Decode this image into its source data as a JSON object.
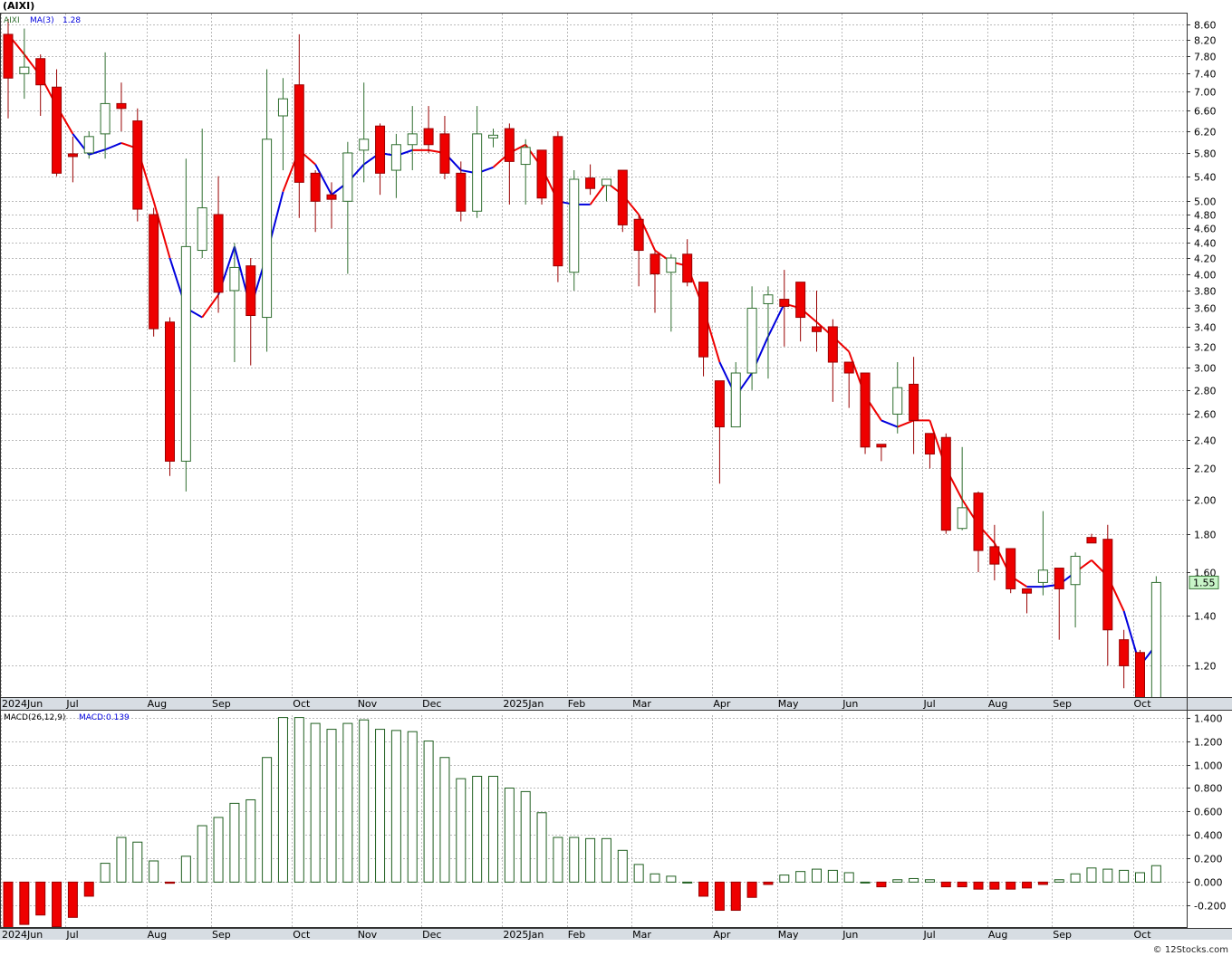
{
  "header": {
    "ticker_label": "(AIXI)",
    "watermark": "© 12Stocks.com"
  },
  "colors": {
    "up_body": "#ffffff",
    "up_border": "#2f6e2f",
    "down_body": "#ee0000",
    "down_border": "#990000",
    "ma_red": "#ee0000",
    "ma_blue": "#0000dd",
    "grid": "#bbbbbb",
    "axis_band": "#d7dde3",
    "last_price_bg": "#c8f5c8"
  },
  "chart_data": [
    {
      "type": "candlestick",
      "scale": "log",
      "legend": {
        "symbol": "AIXI",
        "ma_label": "MA(3)",
        "ma_value": "1.28",
        "placement": "top-left"
      },
      "last_price_label": "1.55",
      "ylim": [
        1.09,
        8.9
      ],
      "y_ticks": [
        "1.20",
        "1.40",
        "1.60",
        "1.80",
        "2.00",
        "2.20",
        "2.40",
        "2.60",
        "2.80",
        "3.00",
        "3.20",
        "3.40",
        "3.60",
        "3.80",
        "4.00",
        "4.20",
        "4.40",
        "4.60",
        "4.80",
        "5.00",
        "5.40",
        "5.80",
        "6.20",
        "6.60",
        "7.00",
        "7.40",
        "7.80",
        "8.20",
        "8.60"
      ],
      "x_ticks": [
        {
          "label": "2024Jun",
          "week": 0
        },
        {
          "label": "Jul",
          "week": 4
        },
        {
          "label": "Aug",
          "week": 9
        },
        {
          "label": "Sep",
          "week": 13
        },
        {
          "label": "Oct",
          "week": 18
        },
        {
          "label": "Nov",
          "week": 22
        },
        {
          "label": "Dec",
          "week": 26
        },
        {
          "label": "2025Jan",
          "week": 31
        },
        {
          "label": "Feb",
          "week": 35
        },
        {
          "label": "Mar",
          "week": 39
        },
        {
          "label": "Apr",
          "week": 44
        },
        {
          "label": "May",
          "week": 48
        },
        {
          "label": "Jun",
          "week": 52
        },
        {
          "label": "Jul",
          "week": 57
        },
        {
          "label": "Aug",
          "week": 61
        },
        {
          "label": "Sep",
          "week": 65
        },
        {
          "label": "Oct",
          "week": 70
        }
      ],
      "grid": true,
      "weeks": 72,
      "candles": [
        [
          8.35,
          8.75,
          6.45,
          7.3
        ],
        [
          7.4,
          8.5,
          6.85,
          7.55
        ],
        [
          7.75,
          7.85,
          6.5,
          7.15
        ],
        [
          7.1,
          7.5,
          5.4,
          5.45
        ],
        [
          5.77,
          6.1,
          5.3,
          5.75
        ],
        [
          5.8,
          6.2,
          5.7,
          6.1
        ],
        [
          6.15,
          7.9,
          5.7,
          6.75
        ],
        [
          6.75,
          7.2,
          6.2,
          6.65
        ],
        [
          6.4,
          6.65,
          4.7,
          4.88
        ],
        [
          4.8,
          4.9,
          3.3,
          3.38
        ],
        [
          3.45,
          3.5,
          2.15,
          2.25
        ],
        [
          2.25,
          5.7,
          2.05,
          4.35
        ],
        [
          4.3,
          6.25,
          4.2,
          4.9
        ],
        [
          4.8,
          5.4,
          3.55,
          3.78
        ],
        [
          3.8,
          4.4,
          3.05,
          4.08
        ],
        [
          4.1,
          4.2,
          3.02,
          3.52
        ],
        [
          3.5,
          7.5,
          3.15,
          6.05
        ],
        [
          6.5,
          7.3,
          5.5,
          6.85
        ],
        [
          7.15,
          8.35,
          4.75,
          5.3
        ],
        [
          5.45,
          5.5,
          4.55,
          5.0
        ],
        [
          5.1,
          5.3,
          4.6,
          5.03
        ],
        [
          5.0,
          6.0,
          4.0,
          5.8
        ],
        [
          5.85,
          7.2,
          5.3,
          6.05
        ],
        [
          6.3,
          6.35,
          5.1,
          5.45
        ],
        [
          5.5,
          6.15,
          5.05,
          5.95
        ],
        [
          5.95,
          6.7,
          5.5,
          6.15
        ],
        [
          6.25,
          6.7,
          5.8,
          5.95
        ],
        [
          6.15,
          6.5,
          5.35,
          5.45
        ],
        [
          5.45,
          5.65,
          4.7,
          4.85
        ],
        [
          4.85,
          6.7,
          4.75,
          6.15
        ],
        [
          6.1,
          6.25,
          5.9,
          6.1
        ],
        [
          6.25,
          6.35,
          4.95,
          5.65
        ],
        [
          5.6,
          6.05,
          4.95,
          5.9
        ],
        [
          5.85,
          5.85,
          4.95,
          5.05
        ],
        [
          6.1,
          6.2,
          3.9,
          4.1
        ],
        [
          4.02,
          5.5,
          3.8,
          5.35
        ],
        [
          5.37,
          5.6,
          5.1,
          5.2
        ],
        [
          5.25,
          5.35,
          5.0,
          5.35
        ],
        [
          5.5,
          5.5,
          4.55,
          4.65
        ],
        [
          4.73,
          4.8,
          3.85,
          4.3
        ],
        [
          4.25,
          4.3,
          3.55,
          4.0
        ],
        [
          4.02,
          4.25,
          3.35,
          4.2
        ],
        [
          4.25,
          4.45,
          3.85,
          3.9
        ],
        [
          3.9,
          3.9,
          2.92,
          3.1
        ],
        [
          2.88,
          2.88,
          2.1,
          2.5
        ],
        [
          2.5,
          3.05,
          2.5,
          2.95
        ],
        [
          2.95,
          3.85,
          2.8,
          3.6
        ],
        [
          3.65,
          3.85,
          2.9,
          3.75
        ],
        [
          3.7,
          4.05,
          3.2,
          3.62
        ],
        [
          3.9,
          3.9,
          3.25,
          3.5
        ],
        [
          3.4,
          3.8,
          3.15,
          3.35
        ],
        [
          3.4,
          3.48,
          2.7,
          3.05
        ],
        [
          3.05,
          3.05,
          2.65,
          2.95
        ],
        [
          2.95,
          2.95,
          2.3,
          2.35
        ],
        [
          2.37,
          2.37,
          2.25,
          2.35
        ],
        [
          2.6,
          3.05,
          2.45,
          2.82
        ],
        [
          2.85,
          3.1,
          2.3,
          2.55
        ],
        [
          2.45,
          2.45,
          2.2,
          2.3
        ],
        [
          2.42,
          2.45,
          1.8,
          1.82
        ],
        [
          1.83,
          2.35,
          1.82,
          1.95
        ],
        [
          2.04,
          2.05,
          1.6,
          1.71
        ],
        [
          1.73,
          1.85,
          1.56,
          1.64
        ],
        [
          1.72,
          1.72,
          1.5,
          1.52
        ],
        [
          1.52,
          1.52,
          1.41,
          1.5
        ],
        [
          1.55,
          1.93,
          1.49,
          1.61
        ],
        [
          1.62,
          1.62,
          1.3,
          1.52
        ],
        [
          1.54,
          1.7,
          1.35,
          1.68
        ],
        [
          1.78,
          1.8,
          1.75,
          1.75
        ],
        [
          1.77,
          1.85,
          1.2,
          1.34
        ],
        [
          1.3,
          1.34,
          1.12,
          1.2
        ],
        [
          1.25,
          1.26,
          1.05,
          1.05
        ],
        [
          1.08,
          1.58,
          1.08,
          1.55
        ]
      ],
      "ma_values": [
        8.35,
        7.85,
        7.35,
        6.7,
        6.15,
        5.77,
        5.86,
        5.98,
        5.88,
        5.0,
        4.2,
        3.6,
        3.5,
        3.75,
        4.35,
        3.6,
        4.25,
        5.15,
        5.85,
        5.6,
        5.1,
        5.3,
        5.6,
        5.8,
        5.75,
        5.85,
        5.85,
        5.8,
        5.5,
        5.45,
        5.55,
        5.8,
        5.95,
        5.55,
        5.0,
        4.95,
        4.95,
        5.3,
        5.1,
        4.8,
        4.3,
        4.15,
        4.1,
        3.6,
        3.05,
        2.75,
        2.95,
        3.3,
        3.65,
        3.6,
        3.45,
        3.3,
        3.15,
        2.75,
        2.55,
        2.5,
        2.55,
        2.55,
        2.2,
        2.0,
        1.85,
        1.75,
        1.58,
        1.53,
        1.53,
        1.54,
        1.6,
        1.66,
        1.58,
        1.42,
        1.2,
        1.28
      ],
      "ma_colors": [
        "r",
        "r",
        "r",
        "r",
        "r",
        "b",
        "b",
        "b",
        "r",
        "r",
        "r",
        "b",
        "b",
        "r",
        "b",
        "b",
        "b",
        "b",
        "r",
        "r",
        "b",
        "b",
        "b",
        "b",
        "b",
        "b",
        "r",
        "r",
        "b",
        "b",
        "b",
        "r",
        "r",
        "r",
        "r",
        "b",
        "b",
        "r",
        "r",
        "r",
        "r",
        "r",
        "r",
        "r",
        "r",
        "b",
        "b",
        "b",
        "b",
        "r",
        "r",
        "r",
        "r",
        "r",
        "r",
        "b",
        "r",
        "r",
        "r",
        "r",
        "r",
        "r",
        "r",
        "r",
        "b",
        "b",
        "b",
        "r",
        "r",
        "r",
        "b",
        "b"
      ]
    },
    {
      "type": "bar",
      "legend": {
        "label": "MACD(26,12,9)",
        "value_label": "MACD:0.139",
        "placement": "top-left"
      },
      "ylim": [
        -0.39,
        1.42
      ],
      "y_ticks": [
        "-0.200",
        "0.000",
        "0.200",
        "0.400",
        "0.600",
        "0.800",
        "1.000",
        "1.200",
        "1.400"
      ],
      "x_ticks": [
        {
          "label": "2024Jun",
          "week": 0
        },
        {
          "label": "Jul",
          "week": 4
        },
        {
          "label": "Aug",
          "week": 9
        },
        {
          "label": "Sep",
          "week": 13
        },
        {
          "label": "Oct",
          "week": 18
        },
        {
          "label": "Nov",
          "week": 22
        },
        {
          "label": "Dec",
          "week": 26
        },
        {
          "label": "2025Jan",
          "week": 31
        },
        {
          "label": "Feb",
          "week": 35
        },
        {
          "label": "Mar",
          "week": 39
        },
        {
          "label": "Apr",
          "week": 44
        },
        {
          "label": "May",
          "week": 48
        },
        {
          "label": "Jun",
          "week": 52
        },
        {
          "label": "Jul",
          "week": 57
        },
        {
          "label": "Aug",
          "week": 61
        },
        {
          "label": "Sep",
          "week": 65
        },
        {
          "label": "Oct",
          "week": 70
        }
      ],
      "values": [
        -0.42,
        -0.36,
        -0.28,
        -0.38,
        -0.3,
        -0.12,
        0.16,
        0.38,
        0.34,
        0.18,
        -0.01,
        0.22,
        0.48,
        0.55,
        0.67,
        0.7,
        1.06,
        1.4,
        1.4,
        1.35,
        1.3,
        1.35,
        1.38,
        1.3,
        1.29,
        1.28,
        1.2,
        1.06,
        0.88,
        0.9,
        0.9,
        0.8,
        0.77,
        0.59,
        0.38,
        0.38,
        0.37,
        0.37,
        0.27,
        0.15,
        0.07,
        0.05,
        0.0,
        -0.12,
        -0.24,
        -0.24,
        -0.13,
        -0.02,
        0.06,
        0.09,
        0.11,
        0.1,
        0.08,
        0.0,
        -0.04,
        0.02,
        0.03,
        0.02,
        -0.04,
        -0.04,
        -0.06,
        -0.06,
        -0.06,
        -0.05,
        -0.02,
        0.02,
        0.07,
        0.12,
        0.11,
        0.1,
        0.08,
        0.14
      ]
    }
  ]
}
